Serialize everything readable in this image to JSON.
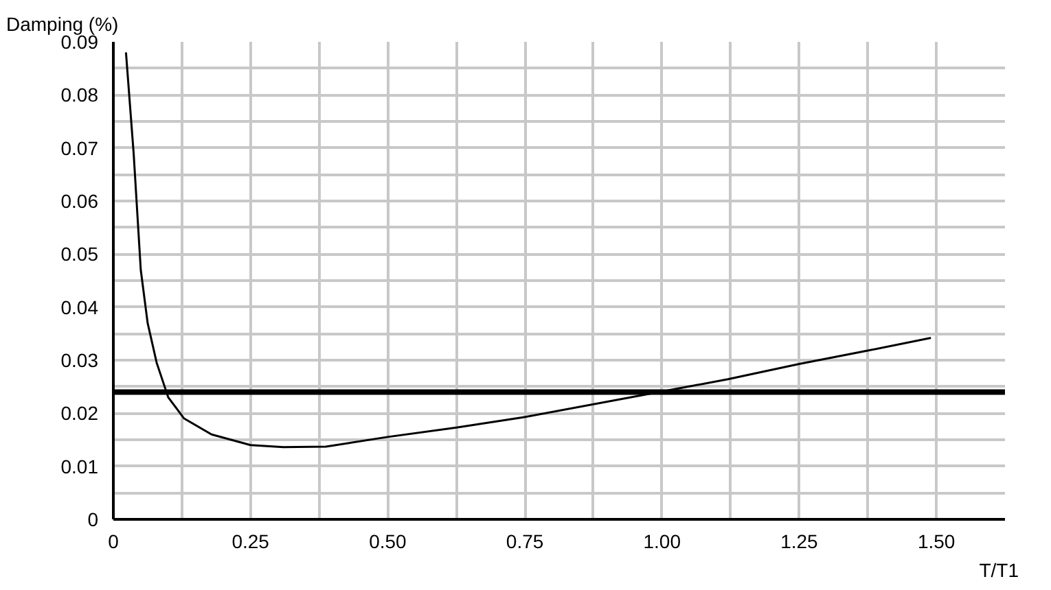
{
  "chart_data": {
    "type": "line",
    "ylabel": "Damping (%)",
    "xlabel": "T/T1",
    "x": [
      0.023,
      0.037,
      0.05,
      0.0625,
      0.079,
      0.1,
      0.129,
      0.179,
      0.25,
      0.31,
      0.3875,
      0.498,
      0.625,
      0.745,
      0.979,
      1.12,
      1.25,
      1.375,
      1.49
    ],
    "series": [
      {
        "color": "#000000",
        "values": [
          0.088,
          0.069,
          0.047,
          0.037,
          0.0295,
          0.023,
          0.019,
          0.016,
          0.014,
          0.0136,
          0.0137,
          0.0155,
          0.0173,
          0.0192,
          0.0237,
          0.0264,
          0.0293,
          0.0318,
          0.0342
        ]
      }
    ],
    "xlim": [
      0,
      1.625
    ],
    "xticks": [
      0,
      {
        "value": 0.125,
        "label": null
      },
      {
        "value": 0.25,
        "label": "0.25"
      },
      {
        "value": 0.375,
        "label": null
      },
      {
        "value": 0.5,
        "label": "0.50"
      },
      {
        "value": 0.625,
        "label": null
      },
      {
        "value": 0.75,
        "label": "0.75"
      },
      {
        "value": 0.875,
        "label": null
      },
      {
        "value": 1.0,
        "label": "1.00"
      },
      {
        "value": 1.125,
        "label": null
      },
      {
        "value": 1.25,
        "label": "1.25"
      },
      {
        "value": 1.375,
        "label": null
      },
      {
        "value": 1.5,
        "label": "1.50"
      }
    ],
    "ylim": [
      0,
      0.09
    ],
    "yticks": [
      0,
      {
        "value": 0.005,
        "label": null
      },
      0.01,
      {
        "value": 0.015,
        "label": null
      },
      0.02,
      {
        "value": 0.025,
        "label": null
      },
      0.03,
      {
        "value": 0.035,
        "label": null
      },
      0.04,
      {
        "value": 0.045,
        "label": null
      },
      0.05,
      {
        "value": 0.055,
        "label": null
      },
      0.06,
      {
        "value": 0.065,
        "label": null
      },
      0.07,
      {
        "value": 0.075,
        "label": null
      },
      0.08,
      {
        "value": 0.085,
        "label": null
      },
      0.09
    ],
    "ref_lines": [
      {
        "axis": "y",
        "value": 0.024,
        "color": "#000000"
      }
    ],
    "grid": true,
    "marker": "none",
    "line_style": "solid"
  }
}
